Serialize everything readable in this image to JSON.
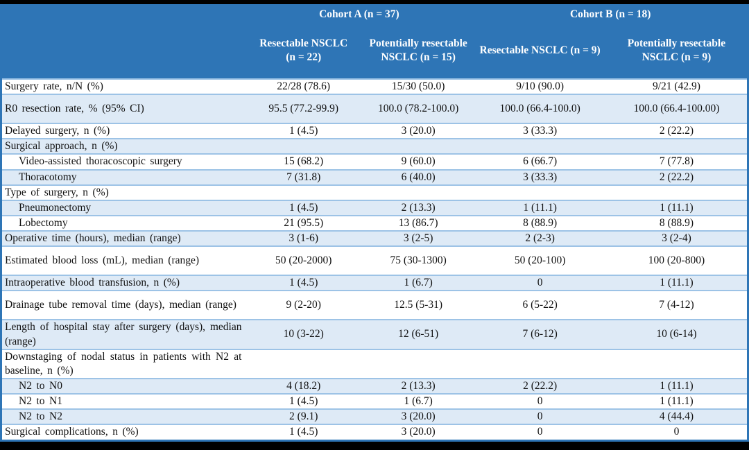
{
  "table": {
    "col_groups": [
      {
        "label": "Cohort A (n = 37)"
      },
      {
        "label": "Cohort B (n = 18)"
      }
    ],
    "columns": [
      {
        "label": "Resectable NSCLC (n = 22)"
      },
      {
        "label": "Potentially resectable NSCLC (n = 15)"
      },
      {
        "label": "Resectable NSCLC (n = 9)"
      },
      {
        "label": "Potentially resectable NSCLC (n = 9)"
      }
    ],
    "rows": [
      {
        "label": "Surgery rate, n/N (%)",
        "values": [
          "22/28 (78.6)",
          "15/30 (50.0)",
          "9/10 (90.0)",
          "9/21 (42.9)"
        ],
        "indent": false,
        "tall": false
      },
      {
        "label": "R0 resection rate, % (95% CI)",
        "values": [
          "95.5 (77.2-99.9)",
          "100.0 (78.2-100.0)",
          "100.0 (66.4-100.0)",
          "100.0 (66.4-100.00)"
        ],
        "indent": false,
        "tall": true
      },
      {
        "label": "Delayed surgery, n (%)",
        "values": [
          "1 (4.5)",
          "3 (20.0)",
          "3 (33.3)",
          "2 (22.2)"
        ],
        "indent": false,
        "tall": false
      },
      {
        "label": "Surgical approach, n (%)",
        "values": [
          "",
          "",
          "",
          ""
        ],
        "indent": false,
        "tall": false
      },
      {
        "label": "Video-assisted thoracoscopic surgery",
        "values": [
          "15 (68.2)",
          "9 (60.0)",
          "6 (66.7)",
          "7 (77.8)"
        ],
        "indent": true,
        "tall": false
      },
      {
        "label": "Thoracotomy",
        "values": [
          "7 (31.8)",
          "6 (40.0)",
          "3 (33.3)",
          "2 (22.2)"
        ],
        "indent": true,
        "tall": false
      },
      {
        "label": "Type of surgery, n (%)",
        "values": [
          "",
          "",
          "",
          ""
        ],
        "indent": false,
        "tall": false
      },
      {
        "label": "Pneumonectomy",
        "values": [
          "1 (4.5)",
          "2 (13.3)",
          "1 (11.1)",
          "1 (11.1)"
        ],
        "indent": true,
        "tall": false
      },
      {
        "label": "Lobectomy",
        "values": [
          "21 (95.5)",
          "13 (86.7)",
          "8 (88.9)",
          "8 (88.9)"
        ],
        "indent": true,
        "tall": false
      },
      {
        "label": "Operative time (hours), median (range)",
        "values": [
          "3 (1-6)",
          "3 (2-5)",
          "2 (2-3)",
          "3 (2-4)"
        ],
        "indent": false,
        "tall": false
      },
      {
        "label": "Estimated blood loss (mL), median (range)",
        "values": [
          "50 (20-2000)",
          "75 (30-1300)",
          "50 (20-100)",
          "100 (20-800)"
        ],
        "indent": false,
        "tall": true
      },
      {
        "label": "Intraoperative blood transfusion, n (%)",
        "values": [
          "1 (4.5)",
          "1 (6.7)",
          "0",
          "1 (11.1)"
        ],
        "indent": false,
        "tall": false
      },
      {
        "label": "Drainage tube removal time (days), median (range)",
        "values": [
          "9 (2-20)",
          "12.5 (5-31)",
          "6 (5-22)",
          "7 (4-12)"
        ],
        "indent": false,
        "tall": true
      },
      {
        "label": "Length of hospital stay after surgery (days), median (range)",
        "values": [
          "10 (3-22)",
          "12 (6-51)",
          "7 (6-12)",
          "10 (6-14)"
        ],
        "indent": false,
        "tall": true
      },
      {
        "label": "Downstaging of nodal status in patients with N2 at baseline, n (%)",
        "values": [
          "",
          "",
          "",
          ""
        ],
        "indent": false,
        "tall": true
      },
      {
        "label": "N2 to N0",
        "values": [
          "4 (18.2)",
          "2 (13.3)",
          "2 (22.2)",
          "1 (11.1)"
        ],
        "indent": true,
        "tall": false
      },
      {
        "label": "N2 to N1",
        "values": [
          "1 (4.5)",
          "1 (6.7)",
          "0",
          "1 (11.1)"
        ],
        "indent": true,
        "tall": false
      },
      {
        "label": "N2 to N2",
        "values": [
          "2 (9.1)",
          "3 (20.0)",
          "0",
          "4 (44.4)"
        ],
        "indent": true,
        "tall": false
      },
      {
        "label": "Surgical complications, n (%)",
        "values": [
          "1 (4.5)",
          "3 (20.0)",
          "0",
          "0"
        ],
        "indent": false,
        "tall": false
      }
    ]
  },
  "colors": {
    "header_bg": "#2E75B6",
    "header_text": "#FFFFFF",
    "shade_row_bg": "#DEEAF6",
    "row_border": "#9DC3E6",
    "outer_border": "#2E75B6",
    "page_bg": "#000000",
    "body_text": "#111111"
  }
}
